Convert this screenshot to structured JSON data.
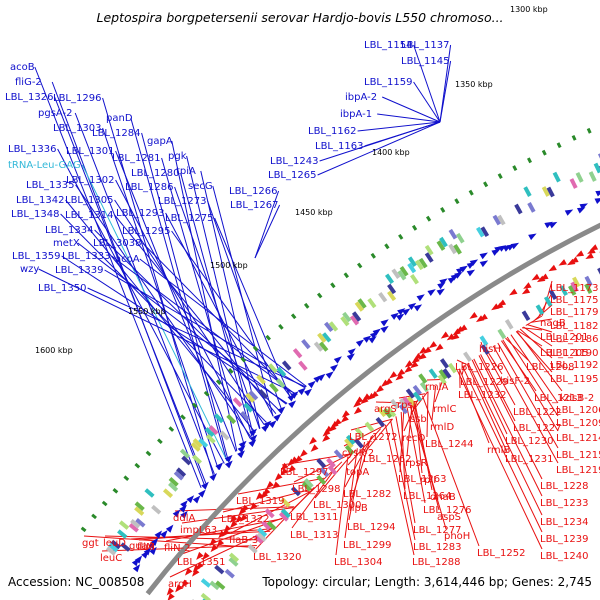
{
  "title": "Leptospira borgpetersenii serovar Hardjo-bovis L550 chromoso...",
  "footer": {
    "accession": "Accession: NC_008508",
    "topology": "Topology: circular; Length: 3,614,446 bp; Genes: 2,745"
  },
  "colors": {
    "blue": "#1010cc",
    "red": "#e81010",
    "cyan": "#33b8d8",
    "backbone": "#8a8a8a",
    "tick_mark": "#2a8a2a"
  },
  "scale_ticks": [
    "1300 kbp",
    "1350 kbp",
    "1400 kbp",
    "1450 kbp",
    "1500 kbp",
    "1550 kbp",
    "1600 kbp"
  ],
  "blue_labels": [
    "acoB",
    "fliG-2",
    "LBL_1326",
    "LBL_1296",
    "pgsA-2",
    "LBL_1303",
    "panD",
    "LBL_1284",
    "gapA",
    "LBL_1336",
    "tRNA-Leu-GAG",
    "LBL_1301",
    "LBL_1281",
    "pgk",
    "LBL_1280",
    "tpiA",
    "LBL_1302",
    "LBL_1286",
    "LBL_1335",
    "secG",
    "LBL_1342",
    "LBL_1305",
    "LBL_1293",
    "LBL_1273",
    "LBL_1348",
    "LBL_1314",
    "LBL_1275",
    "LBL_1334",
    "LBL_1295",
    "metX",
    "LBL_3038",
    "LBL_1359",
    "LBL_1333",
    "acoA",
    "wzy",
    "LBL_1339",
    "LBL_1350",
    "LBL_1266",
    "LBL_1267",
    "LBL_1265",
    "LBL_1243",
    "LBL_1163",
    "LBL_1162",
    "ibpA-1",
    "ibpA-2",
    "LBL_1159",
    "LBL_1145",
    "LBL_1154",
    "LBL_1137"
  ],
  "red_labels": [
    "LBL_1173",
    "LBL_1175",
    "LBL_1179",
    "LBL_1182",
    "LBL_1186",
    "LBL_1190",
    "LBL_1192",
    "LBL_1195",
    "nagB",
    "LBL_1201",
    "LBL_1205",
    "LBL_1208",
    "hisH",
    "LBL_1226",
    "LBL_1229",
    "LBL_1232",
    "hisF-2",
    "LBL_1213",
    "kdsB-2",
    "LBL_1206",
    "LBL_1209",
    "LBL_1214",
    "LBL_1215",
    "LBL_1219",
    "LBL_1228",
    "LBL_1233",
    "LBL_1234",
    "LBL_1239",
    "LBL_1240",
    "LBL_1222",
    "LBL_1227",
    "LBL_1230",
    "LBL_1231",
    "rmlA",
    "rmlC",
    "rmlD",
    "rmlB",
    "rpsF",
    "ssb",
    "argS",
    "LBL_1244",
    "recO",
    "LBL_1263",
    "rpsR",
    "rplI",
    "dnaB",
    "aspS",
    "phoH",
    "LBL_1252",
    "LBL_1272",
    "cysK-2",
    "topA",
    "LBL_1262",
    "LBL_1264",
    "LBL_1276",
    "LBL_1277",
    "LBL_1283",
    "LBL_1288",
    "LBL_1297",
    "LBL_1298",
    "LBL_1282",
    "lipB",
    "LBL_1294",
    "LBL_1299",
    "LBL_1304",
    "LBL_1300",
    "LBL_1311",
    "LBL_1313",
    "LBL_1319",
    "LBL_1322",
    "flaB-3",
    "LBL_1320",
    "ddlA",
    "impL63",
    "fliN-2",
    "LBL_1351",
    "argH",
    "fliM",
    "guaA",
    "leuC",
    "leuD",
    "ggt"
  ]
}
